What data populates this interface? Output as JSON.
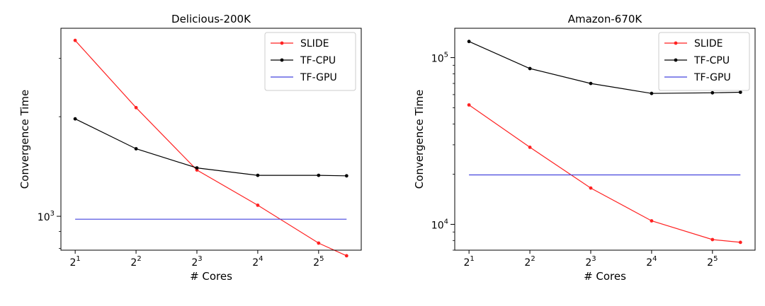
{
  "chart_data": [
    {
      "type": "line",
      "title": "Delicious-200K",
      "xlabel": "# Cores",
      "ylabel": "Convergence Time",
      "x_scale": "log2",
      "y_scale": "log",
      "x": [
        2,
        4,
        8,
        16,
        32,
        44
      ],
      "xticks": [
        {
          "value": 2,
          "base": "2",
          "exp": "1"
        },
        {
          "value": 4,
          "base": "2",
          "exp": "2"
        },
        {
          "value": 8,
          "base": "2",
          "exp": "3"
        },
        {
          "value": 16,
          "base": "2",
          "exp": "4"
        },
        {
          "value": 32,
          "base": "2",
          "exp": "5"
        }
      ],
      "yticks": [
        {
          "value": 1000,
          "base": "10",
          "exp": "3"
        }
      ],
      "xlim": [
        1.7,
        52
      ],
      "ylim": [
        790,
        3700
      ],
      "legend_position": "top-right",
      "grid": false,
      "series": [
        {
          "name": "SLIDE",
          "color": "#ff2222",
          "marker": "dot",
          "values": [
            3400,
            2130,
            1380,
            1080,
            830,
            760
          ]
        },
        {
          "name": "TF-CPU",
          "color": "#000000",
          "marker": "dot",
          "values": [
            1970,
            1600,
            1400,
            1330,
            1330,
            1325
          ]
        },
        {
          "name": "TF-GPU",
          "color": "#4444dd",
          "marker": "none",
          "values": [
            980,
            980,
            980,
            980,
            980,
            980
          ]
        }
      ]
    },
    {
      "type": "line",
      "title": "Amazon-670K",
      "xlabel": "# Cores",
      "ylabel": "Convergence Time",
      "x_scale": "log2",
      "y_scale": "log",
      "x": [
        2,
        4,
        8,
        16,
        32,
        44
      ],
      "xticks": [
        {
          "value": 2,
          "base": "2",
          "exp": "1"
        },
        {
          "value": 4,
          "base": "2",
          "exp": "2"
        },
        {
          "value": 8,
          "base": "2",
          "exp": "3"
        },
        {
          "value": 16,
          "base": "2",
          "exp": "4"
        },
        {
          "value": 32,
          "base": "2",
          "exp": "5"
        }
      ],
      "yticks": [
        {
          "value": 10000,
          "base": "10",
          "exp": "4"
        },
        {
          "value": 100000,
          "base": "10",
          "exp": "5"
        }
      ],
      "xlim": [
        1.7,
        52
      ],
      "ylim": [
        7000,
        150000
      ],
      "legend_position": "top-right",
      "grid": false,
      "series": [
        {
          "name": "SLIDE",
          "color": "#ff2222",
          "marker": "dot",
          "values": [
            52000,
            29000,
            16500,
            10500,
            8100,
            7800
          ]
        },
        {
          "name": "TF-CPU",
          "color": "#000000",
          "marker": "dot",
          "values": [
            125000,
            86000,
            70000,
            61000,
            61500,
            62000
          ]
        },
        {
          "name": "TF-GPU",
          "color": "#4444dd",
          "marker": "none",
          "values": [
            19800,
            19800,
            19800,
            19800,
            19800,
            19800
          ]
        }
      ]
    }
  ]
}
